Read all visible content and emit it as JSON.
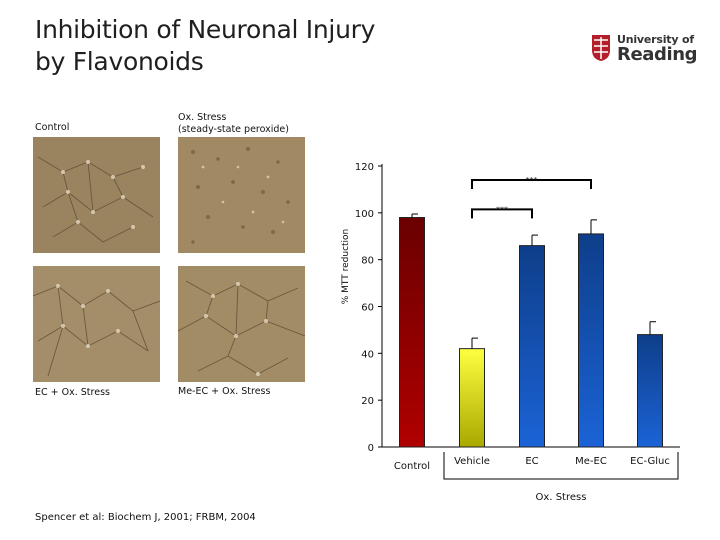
{
  "slide": {
    "title_line1": "Inhibition of Neuronal Injury",
    "title_line2": "by Flavonoids",
    "logo": {
      "line1": "University of",
      "line2": "Reading"
    },
    "reference": "Spencer et al:  Biochem J, 2001;  FRBM, 2004"
  },
  "panels": {
    "control_label": "Control",
    "oxstress_label_line1": "Ox. Stress",
    "oxstress_label_line2": "(steady-state peroxide)",
    "ec_label": "EC + Ox. Stress",
    "meec_label": "Me-EC + Ox. Stress"
  },
  "chart_data": {
    "type": "bar",
    "ylabel": "% MTT reduction",
    "ylim": [
      0,
      120
    ],
    "yticks": [
      0,
      20,
      40,
      60,
      80,
      100,
      120
    ],
    "categories": [
      "Control",
      "Vehicle",
      "EC",
      "Me-EC",
      "EC-Gluc"
    ],
    "values": [
      98,
      42,
      86,
      91,
      48
    ],
    "errors": [
      1.5,
      4.5,
      4.5,
      6,
      5.5
    ],
    "colors": [
      "#b00000",
      "#f0f000",
      "#1b63d6",
      "#1b63d6",
      "#1b63d6"
    ],
    "group_label": "Ox. Stress",
    "significance": [
      {
        "from": "Vehicle",
        "to": "EC",
        "label": "***"
      },
      {
        "from": "Vehicle",
        "to": "Me-EC",
        "label": "***"
      }
    ],
    "grid": false
  }
}
